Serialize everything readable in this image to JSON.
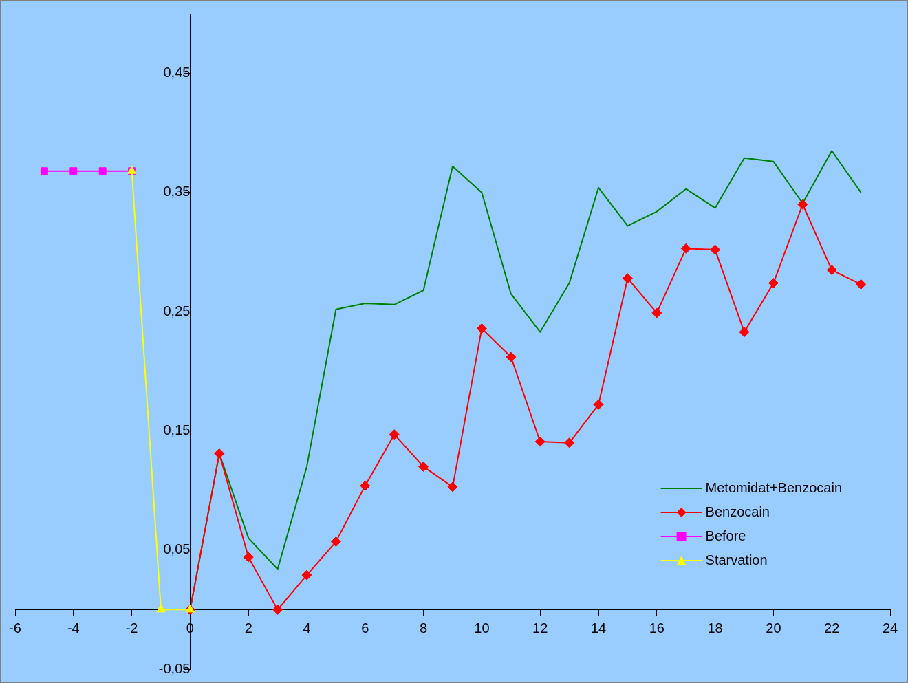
{
  "chart_data": {
    "type": "line",
    "legend": "bottom right",
    "grid": false,
    "xlim": [
      -6,
      24
    ],
    "xticks": [
      -6,
      -4,
      -2,
      0,
      2,
      4,
      6,
      8,
      10,
      12,
      14,
      16,
      18,
      20,
      22,
      24
    ],
    "ylim": [
      -0.05,
      0.5
    ],
    "yticks": [
      {
        "value": -0.05,
        "label": "-0,05"
      },
      {
        "value": 0.05,
        "label": "0,05"
      },
      {
        "value": 0.15,
        "label": "0,15"
      },
      {
        "value": 0.25,
        "label": "0,25"
      },
      {
        "value": 0.35,
        "label": "0,35"
      },
      {
        "value": 0.45,
        "label": "0,45"
      }
    ],
    "series": [
      {
        "name": "Metomidat+Benzocain",
        "color": "#008000",
        "marker": "none",
        "x": [
          0,
          1,
          2,
          3,
          4,
          5,
          6,
          7,
          8,
          9,
          10,
          11,
          12,
          13,
          14,
          15,
          16,
          17,
          18,
          19,
          20,
          21,
          22,
          23
        ],
        "values": [
          0,
          0.131,
          0.06,
          0.034,
          0.12,
          0.252,
          0.257,
          0.256,
          0.268,
          0.372,
          0.35,
          0.265,
          0.233,
          0.274,
          0.354,
          0.322,
          0.334,
          0.353,
          0.337,
          0.379,
          0.376,
          0.341,
          0.385,
          0.35
        ]
      },
      {
        "name": "Benzocain",
        "color": "#ff0000",
        "marker": "diamond",
        "x": [
          0,
          1,
          2,
          3,
          4,
          5,
          6,
          7,
          8,
          9,
          10,
          11,
          12,
          13,
          14,
          15,
          16,
          17,
          18,
          19,
          20,
          21,
          22,
          23
        ],
        "values": [
          0,
          0.131,
          0.044,
          0,
          0.029,
          0.057,
          0.104,
          0.147,
          0.12,
          0.103,
          0.236,
          0.212,
          0.141,
          0.14,
          0.172,
          0.278,
          0.249,
          0.303,
          0.302,
          0.233,
          0.274,
          0.34,
          0.285,
          0.273
        ]
      },
      {
        "name": "Before",
        "color": "#ff00ff",
        "marker": "square",
        "x": [
          -5,
          -4,
          -3,
          -2
        ],
        "values": [
          0.368,
          0.368,
          0.368,
          0.368
        ]
      },
      {
        "name": "Starvation",
        "color": "#ffff00",
        "marker": "triangle",
        "x": [
          -2,
          -1,
          0
        ],
        "values": [
          0.368,
          0,
          0
        ]
      }
    ]
  }
}
